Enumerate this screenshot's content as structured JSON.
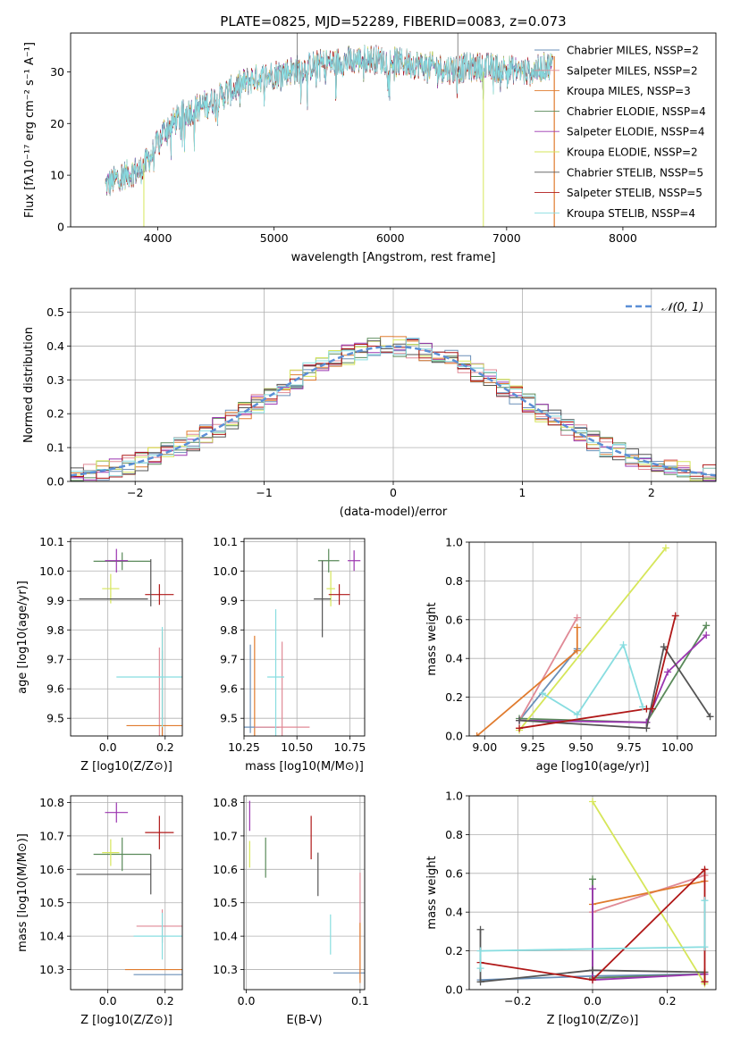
{
  "colors": {
    "chabrier_miles": "#6a8fb8",
    "salpeter_miles": "#e08a96",
    "kroupa_miles": "#e07b2e",
    "chabrier_elodie": "#5a8a5a",
    "salpeter_elodie": "#9b35b0",
    "kroupa_elodie": "#d6e65a",
    "chabrier_stelib": "#555555",
    "salpeter_stelib": "#b01818",
    "kroupa_stelib": "#88dde0",
    "gaussian": "#5b8fd6",
    "grid": "#b0b0b0"
  },
  "chart_data": [
    {
      "id": "spectrum",
      "type": "line",
      "title": "PLATE=0825, MJD=52289, FIBERID=0083, z=0.073",
      "xlabel": "wavelength [Angstrom, rest frame]",
      "ylabel": "Flux [fλ10⁻¹⁷ erg cm⁻² s⁻¹ A⁻¹]",
      "xlim": [
        3250,
        8800
      ],
      "ylim": [
        0,
        37.5
      ],
      "xticks": [
        4000,
        5000,
        6000,
        7000,
        8000
      ],
      "yticks": [
        0,
        10,
        20,
        30
      ],
      "grid": false,
      "legend_position": "right",
      "legend": [
        "Chabrier MILES, NSSP=2",
        "Salpeter MILES, NSSP=2",
        "Kroupa MILES, NSSP=3",
        "Chabrier ELODIE, NSSP=4",
        "Salpeter ELODIE, NSSP=4",
        "Kroupa ELODIE, NSSP=2",
        "Chabrier STELIB, NSSP=5",
        "Salpeter STELIB, NSSP=5",
        "Kroupa STELIB, NSSP=4"
      ],
      "continuum": {
        "x": [
          3550,
          3700,
          3850,
          3950,
          4050,
          4200,
          4400,
          4600,
          4800,
          5000,
          5200,
          5400,
          5600,
          5800,
          6000,
          6200,
          6500,
          6800,
          7000,
          7200,
          7400
        ],
        "y": [
          8,
          10,
          11,
          14,
          18.5,
          21.5,
          23.5,
          26,
          28.5,
          29.5,
          30.5,
          31.5,
          32,
          32.5,
          32,
          31.5,
          30.5,
          31,
          30.5,
          30,
          31.5
        ]
      }
    },
    {
      "id": "residuals",
      "type": "step",
      "xlabel": "(data-model)/error",
      "ylabel": "Normed distribution",
      "xlim": [
        -2.5,
        2.5
      ],
      "ylim": [
        0,
        0.57
      ],
      "xticks": [
        -2,
        -1,
        0,
        1,
        2
      ],
      "yticks": [
        0.0,
        0.1,
        0.2,
        0.3,
        0.4,
        0.5
      ],
      "grid": true,
      "legend": [
        "𝒩(0, 1)"
      ],
      "legend_position": "top-right",
      "bin_width": 0.1
    },
    {
      "id": "age_vs_Z",
      "type": "errorbar",
      "xlabel": "Z [log10(Z/Z⊙)]",
      "ylabel": "age  [log10(age/yr)]",
      "xlim": [
        -0.13,
        0.26
      ],
      "ylim": [
        9.44,
        10.11
      ],
      "xticks": [
        0.0,
        0.2
      ],
      "yticks": [
        9.5,
        9.6,
        9.7,
        9.8,
        9.9,
        10.0,
        10.1
      ],
      "points": [
        {
          "x": 0.19,
          "y": 9.47,
          "xerr": 0.0,
          "yerr": 0.26,
          "c": "chabrier_miles"
        },
        {
          "x": 0.18,
          "y": 9.47,
          "xerr": 0.0,
          "yerr": 0.27,
          "c": "salpeter_miles"
        },
        {
          "x": 0.19,
          "y": 9.475,
          "xerr": 0.125,
          "yerr": 0.32,
          "c": "kroupa_miles"
        },
        {
          "x": 0.05,
          "y": 10.033,
          "xerr": 0.1,
          "yerr": 0.03,
          "c": "chabrier_elodie"
        },
        {
          "x": 0.03,
          "y": 10.035,
          "xerr": 0.04,
          "yerr": 0.04,
          "c": "salpeter_elodie"
        },
        {
          "x": 0.01,
          "y": 9.94,
          "xerr": 0.03,
          "yerr": 0.05,
          "c": "kroupa_elodie"
        },
        {
          "x": 0.02,
          "y": 9.905,
          "xerr": 0.12,
          "yerr": 0.0,
          "c": "chabrier_stelib"
        },
        {
          "x": 0.18,
          "y": 9.92,
          "xerr": 0.05,
          "yerr": 0.035,
          "c": "salpeter_stelib"
        },
        {
          "x": 0.19,
          "y": 9.64,
          "xerr": 0.16,
          "yerr": 0.17,
          "c": "kroupa_stelib"
        },
        {
          "x": 0.15,
          "y": 9.96,
          "xerr": 0.0,
          "yerr": 0.08,
          "c": "chabrier_stelib"
        }
      ]
    },
    {
      "id": "age_vs_mass",
      "type": "errorbar",
      "xlabel": "mass [log10(M/M⊙)]",
      "ylabel": "",
      "xlim": [
        10.25,
        10.82
      ],
      "ylim": [
        9.44,
        10.11
      ],
      "xticks": [
        10.25,
        10.5,
        10.75
      ],
      "yticks": [
        9.5,
        9.6,
        9.7,
        9.8,
        9.9,
        10.0,
        10.1
      ],
      "points": [
        {
          "x": 10.28,
          "y": 9.6,
          "xerr": 0.0,
          "yerr": 0.15,
          "c": "chabrier_miles"
        },
        {
          "x": 10.43,
          "y": 9.6,
          "xerr": 0.0,
          "yerr": 0.16,
          "c": "salpeter_miles"
        },
        {
          "x": 10.3,
          "y": 9.6,
          "xerr": 0.0,
          "yerr": 0.18,
          "c": "kroupa_miles"
        },
        {
          "x": 10.29,
          "y": 9.47,
          "xerr": 0.0,
          "yerr": 0.0,
          "c": "chabrier_miles"
        },
        {
          "x": 10.43,
          "y": 9.47,
          "xerr": 0.13,
          "yerr": 0.0,
          "c": "salpeter_miles"
        },
        {
          "x": 10.65,
          "y": 10.035,
          "xerr": 0.05,
          "yerr": 0.04,
          "c": "chabrier_elodie"
        },
        {
          "x": 10.77,
          "y": 10.035,
          "xerr": 0.03,
          "yerr": 0.035,
          "c": "salpeter_elodie"
        },
        {
          "x": 10.66,
          "y": 9.94,
          "xerr": 0.02,
          "yerr": 0.06,
          "c": "kroupa_elodie"
        },
        {
          "x": 10.62,
          "y": 9.905,
          "xerr": 0.04,
          "yerr": 0.13,
          "c": "chabrier_stelib"
        },
        {
          "x": 10.7,
          "y": 9.92,
          "xerr": 0.05,
          "yerr": 0.035,
          "c": "salpeter_stelib"
        },
        {
          "x": 10.4,
          "y": 9.64,
          "xerr": 0.04,
          "yerr": 0.23,
          "c": "kroupa_stelib"
        }
      ]
    },
    {
      "id": "weight_vs_age",
      "type": "line",
      "xlabel": "age  [log10(age/yr)]",
      "ylabel": "mass weight",
      "xlim": [
        8.92,
        10.2
      ],
      "ylim": [
        0,
        1.0
      ],
      "xticks": [
        9.0,
        9.25,
        9.5,
        9.75,
        10.0
      ],
      "yticks": [
        0.0,
        0.2,
        0.4,
        0.6,
        0.8,
        1.0
      ],
      "grid": true,
      "series": [
        {
          "c": "chabrier_miles",
          "x": [
            9.18,
            9.48
          ],
          "y": [
            0.08,
            0.45
          ]
        },
        {
          "c": "salpeter_miles",
          "x": [
            9.18,
            9.48
          ],
          "y": [
            0.08,
            0.61
          ]
        },
        {
          "c": "kroupa_miles",
          "x": [
            8.96,
            9.48,
            9.48
          ],
          "y": [
            0.0,
            0.44,
            0.56
          ]
        },
        {
          "c": "chabrier_elodie",
          "x": [
            9.18,
            9.84,
            10.15
          ],
          "y": [
            0.09,
            0.07,
            0.57
          ]
        },
        {
          "c": "salpeter_elodie",
          "x": [
            9.18,
            9.84,
            9.95,
            10.15
          ],
          "y": [
            0.08,
            0.07,
            0.33,
            0.52
          ]
        },
        {
          "c": "kroupa_elodie",
          "x": [
            9.18,
            9.94
          ],
          "y": [
            0.03,
            0.97
          ]
        },
        {
          "c": "chabrier_stelib",
          "x": [
            9.18,
            9.84,
            9.93,
            10.17
          ],
          "y": [
            0.08,
            0.04,
            0.46,
            0.1
          ]
        },
        {
          "c": "salpeter_stelib",
          "x": [
            9.18,
            9.84,
            9.87,
            9.99
          ],
          "y": [
            0.04,
            0.14,
            0.14,
            0.62
          ]
        },
        {
          "c": "kroupa_stelib",
          "x": [
            9.3,
            9.48,
            9.72,
            9.82
          ],
          "y": [
            0.22,
            0.11,
            0.47,
            0.15
          ]
        }
      ]
    },
    {
      "id": "mass_vs_Z",
      "type": "errorbar",
      "xlabel": "Z [log10(Z/Z⊙)]",
      "ylabel": "mass [log10(M/M⊙)]",
      "xlim": [
        -0.13,
        0.26
      ],
      "ylim": [
        10.24,
        10.82
      ],
      "xticks": [
        0.0,
        0.2
      ],
      "yticks": [
        10.3,
        10.4,
        10.5,
        10.6,
        10.7,
        10.8
      ],
      "points": [
        {
          "x": 0.19,
          "y": 10.285,
          "xerr": 0.1,
          "yerr": 0.0,
          "c": "chabrier_miles"
        },
        {
          "x": 0.19,
          "y": 10.43,
          "xerr": 0.09,
          "yerr": 0.05,
          "c": "salpeter_miles"
        },
        {
          "x": 0.19,
          "y": 10.3,
          "xerr": 0.13,
          "yerr": 0.0,
          "c": "kroupa_miles"
        },
        {
          "x": 0.05,
          "y": 10.645,
          "xerr": 0.1,
          "yerr": 0.05,
          "c": "chabrier_elodie"
        },
        {
          "x": 0.03,
          "y": 10.77,
          "xerr": 0.04,
          "yerr": 0.03,
          "c": "salpeter_elodie"
        },
        {
          "x": 0.01,
          "y": 10.65,
          "xerr": 0.03,
          "yerr": 0.04,
          "c": "kroupa_elodie"
        },
        {
          "x": 0.02,
          "y": 10.585,
          "xerr": 0.13,
          "yerr": 0.0,
          "c": "chabrier_stelib"
        },
        {
          "x": 0.15,
          "y": 10.585,
          "xerr": 0.0,
          "yerr": 0.06,
          "c": "chabrier_stelib"
        },
        {
          "x": 0.18,
          "y": 10.71,
          "xerr": 0.05,
          "yerr": 0.05,
          "c": "salpeter_stelib"
        },
        {
          "x": 0.19,
          "y": 10.4,
          "xerr": 0.1,
          "yerr": 0.07,
          "c": "kroupa_stelib"
        }
      ]
    },
    {
      "id": "mass_vs_ebv",
      "type": "errorbar",
      "xlabel": "E(B-V)",
      "ylabel": "",
      "xlim": [
        -0.002,
        0.104
      ],
      "ylim": [
        10.24,
        10.82
      ],
      "xticks": [
        0.0,
        0.1
      ],
      "yticks": [
        10.3,
        10.4,
        10.5,
        10.6,
        10.7,
        10.8
      ],
      "points": [
        {
          "x": 0.1,
          "y": 10.29,
          "xerr": 0.0,
          "yerr": 0.0,
          "c": "chabrier_miles"
        },
        {
          "x": 0.1,
          "y": 10.43,
          "xerr": 0.0,
          "yerr": 0.16,
          "c": "salpeter_miles"
        },
        {
          "x": 0.1,
          "y": 10.35,
          "xerr": 0.0,
          "yerr": 0.09,
          "c": "kroupa_miles"
        },
        {
          "x": 0.017,
          "y": 10.635,
          "xerr": 0.0,
          "yerr": 0.06,
          "c": "chabrier_elodie"
        },
        {
          "x": 0.003,
          "y": 10.76,
          "xerr": 0.0,
          "yerr": 0.045,
          "c": "salpeter_elodie"
        },
        {
          "x": 0.003,
          "y": 10.645,
          "xerr": 0.0,
          "yerr": 0.04,
          "c": "kroupa_elodie"
        },
        {
          "x": 0.063,
          "y": 10.585,
          "xerr": 0.0,
          "yerr": 0.065,
          "c": "chabrier_stelib"
        },
        {
          "x": 0.057,
          "y": 10.695,
          "xerr": 0.0,
          "yerr": 0.065,
          "c": "salpeter_stelib"
        },
        {
          "x": 0.074,
          "y": 10.405,
          "xerr": 0.0,
          "yerr": 0.06,
          "c": "kroupa_stelib"
        }
      ]
    },
    {
      "id": "weight_vs_Z",
      "type": "line",
      "xlabel": "Z [log10(Z/Z⊙)]",
      "ylabel": "mass weight",
      "xlim": [
        -0.33,
        0.33
      ],
      "ylim": [
        0,
        1.0
      ],
      "xticks": [
        -0.2,
        0.0,
        0.2
      ],
      "yticks": [
        0.0,
        0.2,
        0.4,
        0.6,
        0.8,
        1.0
      ],
      "grid": true,
      "series": [
        {
          "c": "chabrier_miles",
          "x": [
            -0.3,
            0.0,
            0.3
          ],
          "y": [
            0.05,
            0.07,
            0.08
          ]
        },
        {
          "c": "salpeter_miles",
          "x": [
            0.0,
            0.3
          ],
          "y": [
            0.4,
            0.59
          ]
        },
        {
          "c": "kroupa_miles",
          "x": [
            0.0,
            0.3
          ],
          "y": [
            0.44,
            0.56
          ]
        },
        {
          "c": "chabrier_elodie",
          "x": [
            0.0,
            0.0,
            0.3,
            0.3
          ],
          "y": [
            0.57,
            0.06,
            0.08,
            0.09
          ]
        },
        {
          "c": "salpeter_elodie",
          "x": [
            0.0,
            0.0,
            0.3
          ],
          "y": [
            0.52,
            0.05,
            0.08
          ]
        },
        {
          "c": "kroupa_elodie",
          "x": [
            0.0,
            0.3
          ],
          "y": [
            0.97,
            0.03
          ]
        },
        {
          "c": "chabrier_stelib",
          "x": [
            -0.3,
            -0.3,
            0.0,
            0.3,
            0.3
          ],
          "y": [
            0.31,
            0.04,
            0.1,
            0.09,
            0.04
          ]
        },
        {
          "c": "salpeter_stelib",
          "x": [
            -0.3,
            0.0,
            0.3,
            0.3
          ],
          "y": [
            0.14,
            0.05,
            0.62,
            0.04
          ]
        },
        {
          "c": "kroupa_stelib",
          "x": [
            -0.3,
            -0.3,
            0.3,
            0.3
          ],
          "y": [
            0.11,
            0.2,
            0.22,
            0.46
          ]
        }
      ]
    }
  ]
}
